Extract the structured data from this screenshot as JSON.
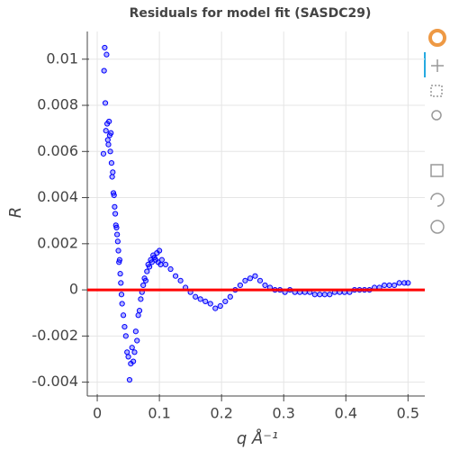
{
  "chart_data": {
    "type": "scatter",
    "title": "Residuals for model fit (SASDC29)",
    "x_label": "q Å⁻¹",
    "y_label": "R",
    "xlim": [
      -0.016,
      0.527
    ],
    "ylim": [
      -0.0046,
      0.0112
    ],
    "xticks": [
      0,
      0.1,
      0.2,
      0.3,
      0.4,
      0.5
    ],
    "yticks": [
      -0.004,
      -0.002,
      0,
      0.002,
      0.004,
      0.006,
      0.008,
      0.01
    ],
    "grid": true,
    "hline": {
      "value": 0,
      "color": "#ff0000"
    },
    "series": [
      {
        "color": "#0000ff",
        "x": [
          0.01,
          0.011,
          0.012,
          0.013,
          0.014,
          0.015,
          0.016,
          0.017,
          0.018,
          0.019,
          0.02,
          0.021,
          0.022,
          0.023,
          0.024,
          0.025,
          0.026,
          0.027,
          0.028,
          0.029,
          0.03,
          0.031,
          0.032,
          0.033,
          0.034,
          0.035,
          0.036,
          0.037,
          0.038,
          0.039,
          0.04,
          0.042,
          0.044,
          0.046,
          0.048,
          0.05,
          0.052,
          0.054,
          0.056,
          0.058,
          0.06,
          0.062,
          0.064,
          0.066,
          0.068,
          0.07,
          0.072,
          0.074,
          0.076,
          0.078,
          0.08,
          0.082,
          0.084,
          0.086,
          0.088,
          0.09,
          0.092,
          0.094,
          0.096,
          0.098,
          0.1,
          0.102,
          0.104,
          0.11,
          0.118,
          0.126,
          0.134,
          0.142,
          0.15,
          0.158,
          0.166,
          0.174,
          0.182,
          0.19,
          0.198,
          0.206,
          0.214,
          0.222,
          0.23,
          0.238,
          0.246,
          0.254,
          0.262,
          0.27,
          0.278,
          0.286,
          0.294,
          0.302,
          0.31,
          0.318,
          0.326,
          0.334,
          0.342,
          0.35,
          0.358,
          0.366,
          0.374,
          0.382,
          0.39,
          0.398,
          0.406,
          0.414,
          0.422,
          0.43,
          0.438,
          0.446,
          0.454,
          0.462,
          0.47,
          0.478,
          0.486,
          0.494,
          0.5
        ],
        "values": [
          0.0059,
          0.0095,
          0.0105,
          0.0081,
          0.0069,
          0.0102,
          0.0072,
          0.0065,
          0.0063,
          0.0073,
          0.0067,
          0.006,
          0.0068,
          0.0055,
          0.0049,
          0.0051,
          0.0042,
          0.0041,
          0.0036,
          0.0033,
          0.0028,
          0.0027,
          0.0024,
          0.0021,
          0.0017,
          0.0012,
          0.0013,
          0.0007,
          0.0003,
          -0.0002,
          -0.0006,
          -0.0011,
          -0.0016,
          -0.002,
          -0.0027,
          -0.0029,
          -0.0039,
          -0.0032,
          -0.0025,
          -0.0031,
          -0.0027,
          -0.0018,
          -0.0022,
          -0.0011,
          -0.0009,
          -0.0004,
          -0.0001,
          0.0002,
          0.0005,
          0.0004,
          0.0008,
          0.0011,
          0.001,
          0.0013,
          0.0012,
          0.0015,
          0.0014,
          0.0013,
          0.0016,
          0.0012,
          0.0017,
          0.0011,
          0.0013,
          0.0011,
          0.0009,
          0.0006,
          0.0004,
          0.0001,
          -0.0001,
          -0.0003,
          -0.0004,
          -0.0005,
          -0.0006,
          -0.0008,
          -0.0007,
          -0.0005,
          -0.0003,
          0,
          0.0002,
          0.0004,
          0.0005,
          0.0006,
          0.0004,
          0.0002,
          0.0001,
          0,
          0,
          -0.0001,
          0,
          -0.0001,
          -0.0001,
          -0.0001,
          -0.0001,
          -0.0002,
          -0.0002,
          -0.0002,
          -0.0002,
          -0.0001,
          -0.0001,
          -0.0001,
          -0.0001,
          0,
          0,
          0,
          0,
          0.0001,
          0.0001,
          0.0002,
          0.0002,
          0.0002,
          0.0003,
          0.0003,
          0.0003
        ]
      }
    ]
  }
}
